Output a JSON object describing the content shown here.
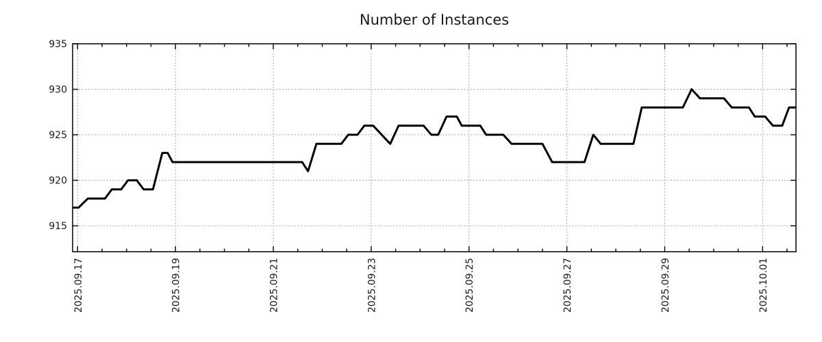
{
  "chart_data": {
    "type": "line",
    "title": "Number of Instances",
    "legend": "none",
    "grid": "dashed gridlines at major ticks",
    "colors": {
      "line": "#000000",
      "grid": "#a6a6a6",
      "axis": "#000000",
      "text": "#1a1a1a",
      "background": "#ffffff"
    },
    "x_axis": {
      "unit": "days since 2025.09.17 00:00",
      "range": [
        -0.102,
        14.682
      ],
      "major_tick_step_days": 2,
      "minor_tick_step_days": 0.5,
      "tick_label_rotation_deg": 90,
      "ticks": [
        {
          "offset": 0,
          "label": "2025.09.17"
        },
        {
          "offset": 2,
          "label": "2025.09.19"
        },
        {
          "offset": 4,
          "label": "2025.09.21"
        },
        {
          "offset": 6,
          "label": "2025.09.23"
        },
        {
          "offset": 8,
          "label": "2025.09.25"
        },
        {
          "offset": 10,
          "label": "2025.09.27"
        },
        {
          "offset": 12,
          "label": "2025.09.29"
        },
        {
          "offset": 14,
          "label": "2025.10.01"
        }
      ]
    },
    "y_axis": {
      "range": [
        912.15,
        935
      ],
      "ticks": [
        915,
        920,
        925,
        930,
        935
      ]
    },
    "series": [
      {
        "name": "Number of Instances",
        "points": [
          [
            -0.1,
            917
          ],
          [
            0.02,
            917
          ],
          [
            0.21,
            918
          ],
          [
            0.56,
            918
          ],
          [
            0.7,
            919
          ],
          [
            0.89,
            919
          ],
          [
            1.03,
            920
          ],
          [
            1.21,
            920
          ],
          [
            1.35,
            919
          ],
          [
            1.54,
            919
          ],
          [
            1.73,
            923
          ],
          [
            1.84,
            923
          ],
          [
            1.94,
            922
          ],
          [
            4.59,
            922
          ],
          [
            4.71,
            921
          ],
          [
            4.88,
            924
          ],
          [
            5.39,
            924
          ],
          [
            5.53,
            925
          ],
          [
            5.72,
            925
          ],
          [
            5.86,
            926
          ],
          [
            6.04,
            926
          ],
          [
            6.39,
            924
          ],
          [
            6.56,
            926
          ],
          [
            7.07,
            926
          ],
          [
            7.23,
            925
          ],
          [
            7.37,
            925
          ],
          [
            7.54,
            927
          ],
          [
            7.75,
            927
          ],
          [
            7.85,
            926
          ],
          [
            8.23,
            926
          ],
          [
            8.35,
            925
          ],
          [
            8.7,
            925
          ],
          [
            8.87,
            924
          ],
          [
            9.5,
            924
          ],
          [
            9.7,
            922
          ],
          [
            10.36,
            922
          ],
          [
            10.54,
            925
          ],
          [
            10.69,
            924
          ],
          [
            11.36,
            924
          ],
          [
            11.53,
            928
          ],
          [
            12.37,
            928
          ],
          [
            12.55,
            930
          ],
          [
            12.72,
            929
          ],
          [
            13.21,
            929
          ],
          [
            13.37,
            928
          ],
          [
            13.72,
            928
          ],
          [
            13.84,
            927
          ],
          [
            14.05,
            927
          ],
          [
            14.21,
            926
          ],
          [
            14.4,
            926
          ],
          [
            14.54,
            928
          ],
          [
            14.68,
            928
          ]
        ]
      }
    ]
  }
}
